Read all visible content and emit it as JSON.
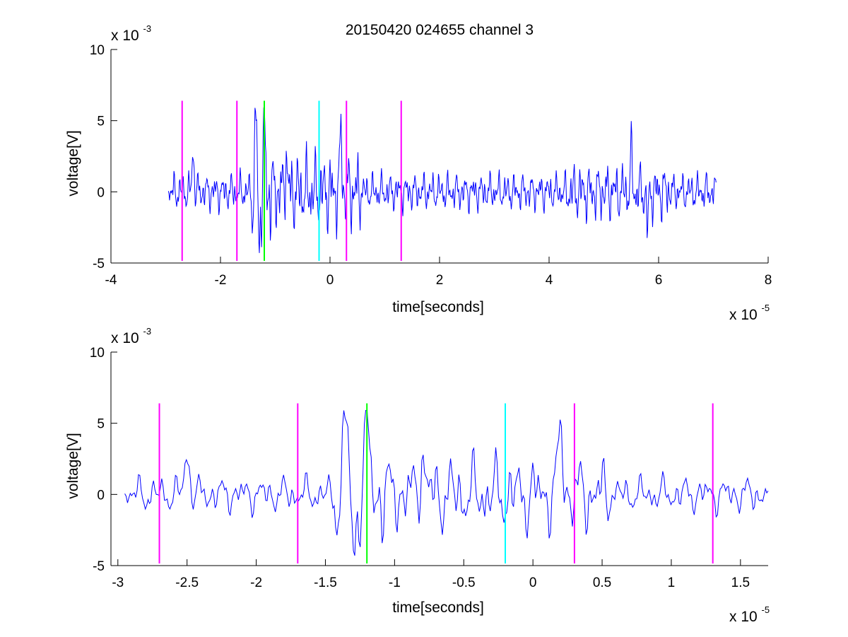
{
  "figure_title": "20150420 024655 channel 3",
  "chart_data": [
    {
      "type": "line",
      "title": "20150420 024655 channel 3",
      "xlabel": "time[seconds]",
      "ylabel": "voltage[V]",
      "x_scale_label": "x 10",
      "x_scale_exponent": "-5",
      "y_scale_label": "x 10",
      "y_scale_exponent": "-3",
      "xlim": [
        -4,
        8
      ],
      "ylim": [
        -5,
        10
      ],
      "xticks": [
        -4,
        -2,
        0,
        2,
        4,
        6,
        8
      ],
      "xtick_labels": [
        "-4",
        "-2",
        "0",
        "2",
        "4",
        "6",
        "8"
      ],
      "yticks": [
        -5,
        0,
        5,
        10
      ],
      "ytick_labels": [
        "-5",
        "0",
        "5",
        "10"
      ],
      "grid": false,
      "series": [
        {
          "color": "#0000ff",
          "x_range": [
            -2.95,
            7.05
          ],
          "points": 1000,
          "note_values_in_units": "x in 1e-5 s, y in 1e-3 V",
          "samples": [
            [
              -2.95,
              -0.9
            ],
            [
              -2.8,
              0.5
            ],
            [
              -2.7,
              -0.5
            ],
            [
              -2.5,
              2.8
            ],
            [
              -2.4,
              -0.3
            ],
            [
              -2.2,
              1.2
            ],
            [
              -2.0,
              -1.0
            ],
            [
              -1.8,
              1.8
            ],
            [
              -1.7,
              -1.3
            ],
            [
              -1.5,
              0.4
            ],
            [
              -1.35,
              5.8
            ],
            [
              -1.3,
              -4.2
            ],
            [
              -1.2,
              5.4
            ],
            [
              -1.1,
              -3.0
            ],
            [
              -0.8,
              2.8
            ],
            [
              -0.5,
              -2.5
            ],
            [
              -0.3,
              3.1
            ],
            [
              -0.1,
              -2.6
            ],
            [
              0.1,
              3.6
            ],
            [
              0.2,
              4.2
            ],
            [
              0.4,
              -1.8
            ],
            [
              0.6,
              1.9
            ],
            [
              1.0,
              -1.5
            ],
            [
              1.5,
              1.6
            ],
            [
              2.0,
              -1.4
            ],
            [
              2.5,
              1.9
            ],
            [
              3.0,
              -1.2
            ],
            [
              3.5,
              1.2
            ],
            [
              4.0,
              -1.0
            ],
            [
              4.5,
              2.0
            ],
            [
              5.0,
              2.4
            ],
            [
              5.5,
              2.5
            ],
            [
              5.8,
              -2.6
            ],
            [
              6.1,
              1.6
            ],
            [
              6.5,
              -1.8
            ],
            [
              7.05,
              0.5
            ]
          ]
        }
      ],
      "markers": [
        {
          "x": -2.7,
          "color": "#ff00ff",
          "y_range": [
            -4.85,
            6.4
          ]
        },
        {
          "x": -1.7,
          "color": "#ff00ff",
          "y_range": [
            -4.85,
            6.4
          ]
        },
        {
          "x": -1.2,
          "color": "#00ff00",
          "y_range": [
            -4.85,
            6.4
          ]
        },
        {
          "x": -0.2,
          "color": "#00ffff",
          "y_range": [
            -4.85,
            6.4
          ]
        },
        {
          "x": 0.3,
          "color": "#ff00ff",
          "y_range": [
            -4.85,
            6.4
          ]
        },
        {
          "x": 1.3,
          "color": "#ff00ff",
          "y_range": [
            -4.85,
            6.4
          ]
        }
      ]
    },
    {
      "type": "line",
      "title": "",
      "xlabel": "time[seconds]",
      "ylabel": "voltage[V]",
      "x_scale_label": "x 10",
      "x_scale_exponent": "-5",
      "y_scale_label": "x 10",
      "y_scale_exponent": "-3",
      "xlim": [
        -3.05,
        1.7
      ],
      "ylim": [
        -5,
        10
      ],
      "xticks": [
        -3,
        -2.5,
        -2,
        -1.5,
        -1,
        -0.5,
        0,
        0.5,
        1,
        1.5
      ],
      "xtick_labels": [
        "-3",
        "-2.5",
        "-2",
        "-1.5",
        "-1",
        "-0.5",
        "0",
        "0.5",
        "1",
        "1.5"
      ],
      "yticks": [
        -5,
        0,
        5,
        10
      ],
      "ytick_labels": [
        "-5",
        "0",
        "5",
        "10"
      ],
      "grid": false,
      "series": [
        {
          "color": "#0000ff",
          "x_range": [
            -2.95,
            1.7
          ],
          "points": 470,
          "note_values_in_units": "x in 1e-5 s, y in 1e-3 V"
        }
      ],
      "markers": [
        {
          "x": -2.7,
          "color": "#ff00ff",
          "y_range": [
            -4.85,
            6.4
          ]
        },
        {
          "x": -1.7,
          "color": "#ff00ff",
          "y_range": [
            -4.85,
            6.4
          ]
        },
        {
          "x": -1.2,
          "color": "#00ff00",
          "y_range": [
            -4.85,
            6.4
          ]
        },
        {
          "x": -0.2,
          "color": "#00ffff",
          "y_range": [
            -4.85,
            6.4
          ]
        },
        {
          "x": 0.3,
          "color": "#ff00ff",
          "y_range": [
            -4.85,
            6.4
          ]
        },
        {
          "x": 1.3,
          "color": "#ff00ff",
          "y_range": [
            -4.85,
            6.4
          ]
        }
      ]
    }
  ]
}
